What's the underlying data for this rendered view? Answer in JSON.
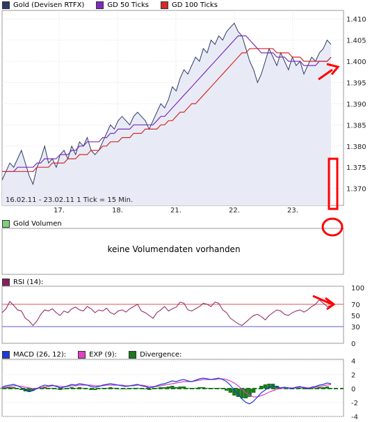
{
  "price_panel": {
    "legend": [
      {
        "label": "Gold (Devisen RTFX)",
        "color": "#2b3a67"
      },
      {
        "label": "GD 50 Ticks",
        "color": "#7b2cbf"
      },
      {
        "label": "GD 100 Ticks",
        "color": "#d62828"
      }
    ],
    "range_label": "16.02.11 - 23.02.11   1 Tick = 15 Min."
  },
  "volume_panel": {
    "legend": {
      "label": "Gold Volumen",
      "color": "#7fcf7f"
    },
    "message": "keine Volumendaten vorhanden"
  },
  "rsi_panel": {
    "legend": {
      "label": "RSI (14):",
      "color": "#8a1f5c"
    }
  },
  "macd_panel": {
    "legend": [
      {
        "label": "MACD (26, 12):",
        "color": "#1f3bd6"
      },
      {
        "label": "EXP (9):",
        "color": "#e040c0"
      },
      {
        "label": "Divergence:",
        "color": "#1b7a1b"
      }
    ]
  },
  "colors": {
    "price_line": "#2b3a67",
    "price_fill": "#e8ebf6",
    "gd50": "#7b2cbf",
    "gd100": "#d62828",
    "rsi_line": "#8a1f5c",
    "rsi_upper": "#e05050",
    "rsi_lower": "#5a5ad0",
    "macd": "#1f3bd6",
    "exp": "#e040c0",
    "divergence": "#1b7a1b",
    "annotation": "#ff0000"
  },
  "chart_data": [
    {
      "type": "line",
      "panel": "price",
      "x_tick_labels": [
        "17.",
        "18.",
        "21.",
        "22.",
        "23."
      ],
      "y_ticks": [
        1.37,
        1.375,
        1.38,
        1.385,
        1.39,
        1.395,
        1.4,
        1.405,
        1.41
      ],
      "ylim": [
        1.366,
        1.412
      ],
      "series": [
        {
          "name": "Gold (Devisen RTFX)",
          "values": [
            1.372,
            1.374,
            1.376,
            1.375,
            1.377,
            1.379,
            1.376,
            1.373,
            1.371,
            1.375,
            1.377,
            1.38,
            1.376,
            1.377,
            1.375,
            1.378,
            1.379,
            1.377,
            1.38,
            1.378,
            1.381,
            1.38,
            1.382,
            1.379,
            1.378,
            1.379,
            1.381,
            1.383,
            1.385,
            1.384,
            1.386,
            1.387,
            1.386,
            1.385,
            1.387,
            1.388,
            1.387,
            1.386,
            1.384,
            1.386,
            1.388,
            1.39,
            1.389,
            1.391,
            1.394,
            1.393,
            1.396,
            1.398,
            1.397,
            1.399,
            1.401,
            1.4,
            1.403,
            1.402,
            1.405,
            1.404,
            1.406,
            1.405,
            1.407,
            1.408,
            1.409,
            1.407,
            1.406,
            1.403,
            1.4,
            1.398,
            1.395,
            1.397,
            1.4,
            1.403,
            1.401,
            1.399,
            1.402,
            1.4,
            1.398,
            1.401,
            1.399,
            1.4,
            1.397,
            1.399,
            1.401,
            1.4,
            1.402,
            1.403,
            1.405,
            1.404
          ]
        },
        {
          "name": "GD 50 Ticks",
          "values": [
            1.374,
            1.374,
            1.374,
            1.374,
            1.375,
            1.375,
            1.375,
            1.375,
            1.375,
            1.376,
            1.376,
            1.377,
            1.377,
            1.377,
            1.377,
            1.378,
            1.378,
            1.378,
            1.379,
            1.379,
            1.38,
            1.38,
            1.381,
            1.381,
            1.381,
            1.381,
            1.382,
            1.382,
            1.383,
            1.383,
            1.384,
            1.384,
            1.384,
            1.384,
            1.385,
            1.385,
            1.385,
            1.385,
            1.385,
            1.385,
            1.386,
            1.387,
            1.387,
            1.388,
            1.389,
            1.39,
            1.391,
            1.392,
            1.393,
            1.394,
            1.395,
            1.396,
            1.397,
            1.398,
            1.399,
            1.4,
            1.401,
            1.402,
            1.403,
            1.404,
            1.405,
            1.406,
            1.406,
            1.406,
            1.405,
            1.404,
            1.403,
            1.402,
            1.402,
            1.402,
            1.402,
            1.401,
            1.401,
            1.401,
            1.4,
            1.4,
            1.4,
            1.4,
            1.399,
            1.399,
            1.399,
            1.399,
            1.4,
            1.4,
            1.4,
            1.401
          ]
        },
        {
          "name": "GD 100 Ticks",
          "values": [
            1.374,
            1.374,
            1.374,
            1.374,
            1.374,
            1.374,
            1.374,
            1.374,
            1.374,
            1.375,
            1.375,
            1.375,
            1.375,
            1.376,
            1.376,
            1.376,
            1.376,
            1.377,
            1.377,
            1.377,
            1.378,
            1.378,
            1.378,
            1.379,
            1.379,
            1.379,
            1.38,
            1.38,
            1.381,
            1.381,
            1.381,
            1.382,
            1.382,
            1.382,
            1.383,
            1.383,
            1.383,
            1.384,
            1.384,
            1.384,
            1.384,
            1.385,
            1.385,
            1.386,
            1.386,
            1.387,
            1.388,
            1.388,
            1.389,
            1.39,
            1.39,
            1.391,
            1.392,
            1.393,
            1.394,
            1.395,
            1.396,
            1.397,
            1.398,
            1.399,
            1.4,
            1.401,
            1.402,
            1.402,
            1.403,
            1.403,
            1.403,
            1.403,
            1.403,
            1.403,
            1.403,
            1.402,
            1.402,
            1.402,
            1.402,
            1.401,
            1.401,
            1.401,
            1.4,
            1.4,
            1.4,
            1.4,
            1.4,
            1.4,
            1.4,
            1.401
          ]
        }
      ]
    },
    {
      "type": "line",
      "panel": "rsi",
      "y_ticks": [
        0,
        30,
        50,
        70,
        100
      ],
      "reference_lines": [
        70,
        30
      ],
      "ylim": [
        0,
        100
      ],
      "series": [
        {
          "name": "RSI (14)",
          "values": [
            55,
            62,
            75,
            68,
            60,
            58,
            45,
            40,
            32,
            40,
            52,
            60,
            58,
            62,
            55,
            50,
            58,
            55,
            62,
            65,
            60,
            58,
            66,
            62,
            55,
            60,
            58,
            63,
            55,
            52,
            58,
            60,
            56,
            62,
            66,
            70,
            58,
            55,
            50,
            45,
            55,
            60,
            66,
            58,
            62,
            65,
            74,
            72,
            60,
            58,
            62,
            66,
            72,
            70,
            66,
            74,
            72,
            60,
            55,
            45,
            40,
            35,
            32,
            38,
            44,
            50,
            52,
            48,
            42,
            50,
            55,
            60,
            58,
            52,
            50,
            55,
            58,
            60,
            56,
            60,
            66,
            70,
            78,
            72,
            66,
            68
          ]
        }
      ]
    },
    {
      "type": "line",
      "panel": "macd",
      "y_ticks": [
        -4,
        -2,
        0,
        2,
        4
      ],
      "ylim": [
        -4,
        4
      ],
      "series": [
        {
          "name": "MACD (26, 12)",
          "values": [
            0.2,
            0.4,
            0.5,
            0.6,
            0.4,
            0.1,
            -0.2,
            -0.4,
            -0.3,
            0.0,
            0.3,
            0.5,
            0.4,
            0.5,
            0.3,
            0.1,
            0.2,
            0.4,
            0.6,
            0.5,
            0.7,
            0.6,
            0.5,
            0.3,
            0.2,
            0.3,
            0.5,
            0.6,
            0.7,
            0.6,
            0.5,
            0.4,
            0.3,
            0.4,
            0.5,
            0.6,
            0.4,
            0.3,
            0.1,
            0.2,
            0.4,
            0.6,
            0.7,
            0.9,
            1.1,
            1.0,
            1.2,
            1.3,
            1.1,
            1.0,
            1.2,
            1.4,
            1.5,
            1.4,
            1.3,
            1.4,
            1.5,
            1.3,
            1.0,
            0.5,
            -0.2,
            -0.8,
            -1.5,
            -2.0,
            -2.2,
            -1.8,
            -1.2,
            -0.6,
            -0.2,
            0.2,
            0.4,
            0.3,
            0.1,
            0.2,
            0.1,
            0.0,
            0.2,
            0.3,
            0.1,
            0.0,
            0.2,
            0.3,
            0.5,
            0.6,
            0.8,
            0.7
          ]
        },
        {
          "name": "EXP (9)",
          "values": [
            0.1,
            0.2,
            0.3,
            0.4,
            0.4,
            0.3,
            0.2,
            0.1,
            0.0,
            0.0,
            0.1,
            0.2,
            0.3,
            0.4,
            0.4,
            0.3,
            0.3,
            0.3,
            0.4,
            0.4,
            0.5,
            0.5,
            0.5,
            0.5,
            0.4,
            0.4,
            0.4,
            0.5,
            0.5,
            0.5,
            0.5,
            0.5,
            0.4,
            0.4,
            0.4,
            0.5,
            0.5,
            0.4,
            0.3,
            0.3,
            0.3,
            0.4,
            0.5,
            0.6,
            0.7,
            0.8,
            0.9,
            1.0,
            1.0,
            1.0,
            1.1,
            1.2,
            1.3,
            1.3,
            1.3,
            1.3,
            1.4,
            1.4,
            1.3,
            1.1,
            0.8,
            0.4,
            -0.1,
            -0.6,
            -1.0,
            -1.2,
            -1.2,
            -1.0,
            -0.8,
            -0.5,
            -0.3,
            -0.1,
            0.0,
            0.1,
            0.1,
            0.1,
            0.1,
            0.2,
            0.2,
            0.1,
            0.1,
            0.2,
            0.3,
            0.4,
            0.5,
            0.6
          ]
        }
      ]
    }
  ]
}
